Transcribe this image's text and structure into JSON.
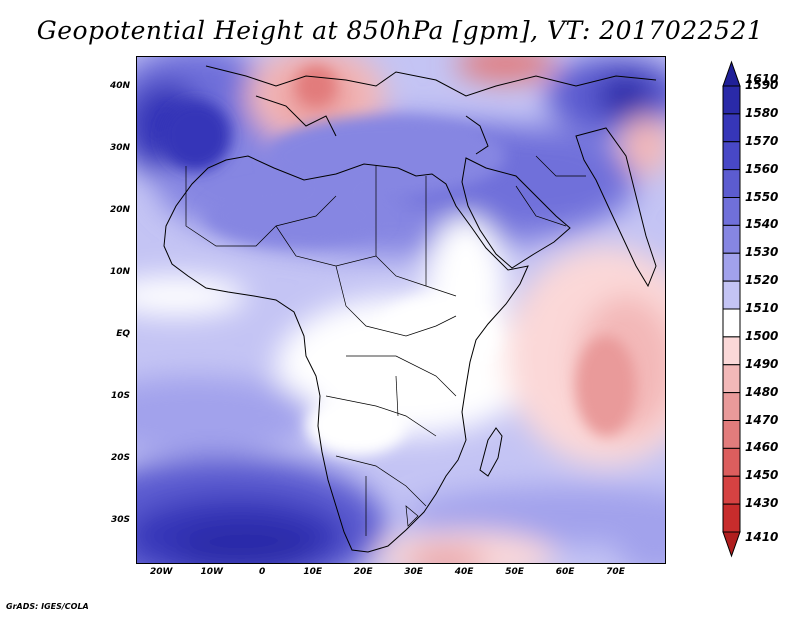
{
  "title": "Geopotential Height at 850hPa [gpm], VT: 2017022521",
  "footer": "GrADS: IGES/COLA",
  "map": {
    "variable": "Geopotential Height at 850hPa",
    "units": "gpm",
    "valid_time": "2017022521",
    "lon_range": [
      -25,
      80
    ],
    "lat_range": [
      -37,
      45
    ],
    "y_ticks": [
      {
        "lat": 40,
        "label": "40N"
      },
      {
        "lat": 30,
        "label": "30N"
      },
      {
        "lat": 20,
        "label": "20N"
      },
      {
        "lat": 10,
        "label": "10N"
      },
      {
        "lat": 0,
        "label": "EQ"
      },
      {
        "lat": -10,
        "label": "10S"
      },
      {
        "lat": -20,
        "label": "20S"
      },
      {
        "lat": -30,
        "label": "30S"
      }
    ],
    "x_ticks": [
      {
        "lon": -20,
        "label": "20W"
      },
      {
        "lon": -10,
        "label": "10W"
      },
      {
        "lon": 0,
        "label": "0"
      },
      {
        "lon": 10,
        "label": "10E"
      },
      {
        "lon": 20,
        "label": "20E"
      },
      {
        "lon": 30,
        "label": "30E"
      },
      {
        "lon": 40,
        "label": "40E"
      },
      {
        "lon": 50,
        "label": "50E"
      },
      {
        "lon": 60,
        "label": "60E"
      },
      {
        "lon": 70,
        "label": "70E"
      }
    ]
  },
  "colorbar": {
    "levels": [
      {
        "label": "1610",
        "color": "#202098"
      },
      {
        "label": "1590",
        "color": "#2a2aa8"
      },
      {
        "label": "1580",
        "color": "#3636b8"
      },
      {
        "label": "1570",
        "color": "#4848c6"
      },
      {
        "label": "1560",
        "color": "#5c5cd0"
      },
      {
        "label": "1550",
        "color": "#7070da"
      },
      {
        "label": "1540",
        "color": "#8686e2"
      },
      {
        "label": "1530",
        "color": "#a2a2ec"
      },
      {
        "label": "1520",
        "color": "#c4c4f4"
      },
      {
        "label": "1510",
        "color": "#ffffff"
      },
      {
        "label": "1500",
        "color": "#fbd8d8"
      },
      {
        "label": "1490",
        "color": "#f3b8b8"
      },
      {
        "label": "1480",
        "color": "#e99a9a"
      },
      {
        "label": "1470",
        "color": "#e27c7c"
      },
      {
        "label": "1460",
        "color": "#dc5e5e"
      },
      {
        "label": "1450",
        "color": "#d64242"
      },
      {
        "label": "1430",
        "color": "#c82c2c"
      },
      {
        "label": "1410",
        "color": "#b01e1e"
      }
    ]
  }
}
